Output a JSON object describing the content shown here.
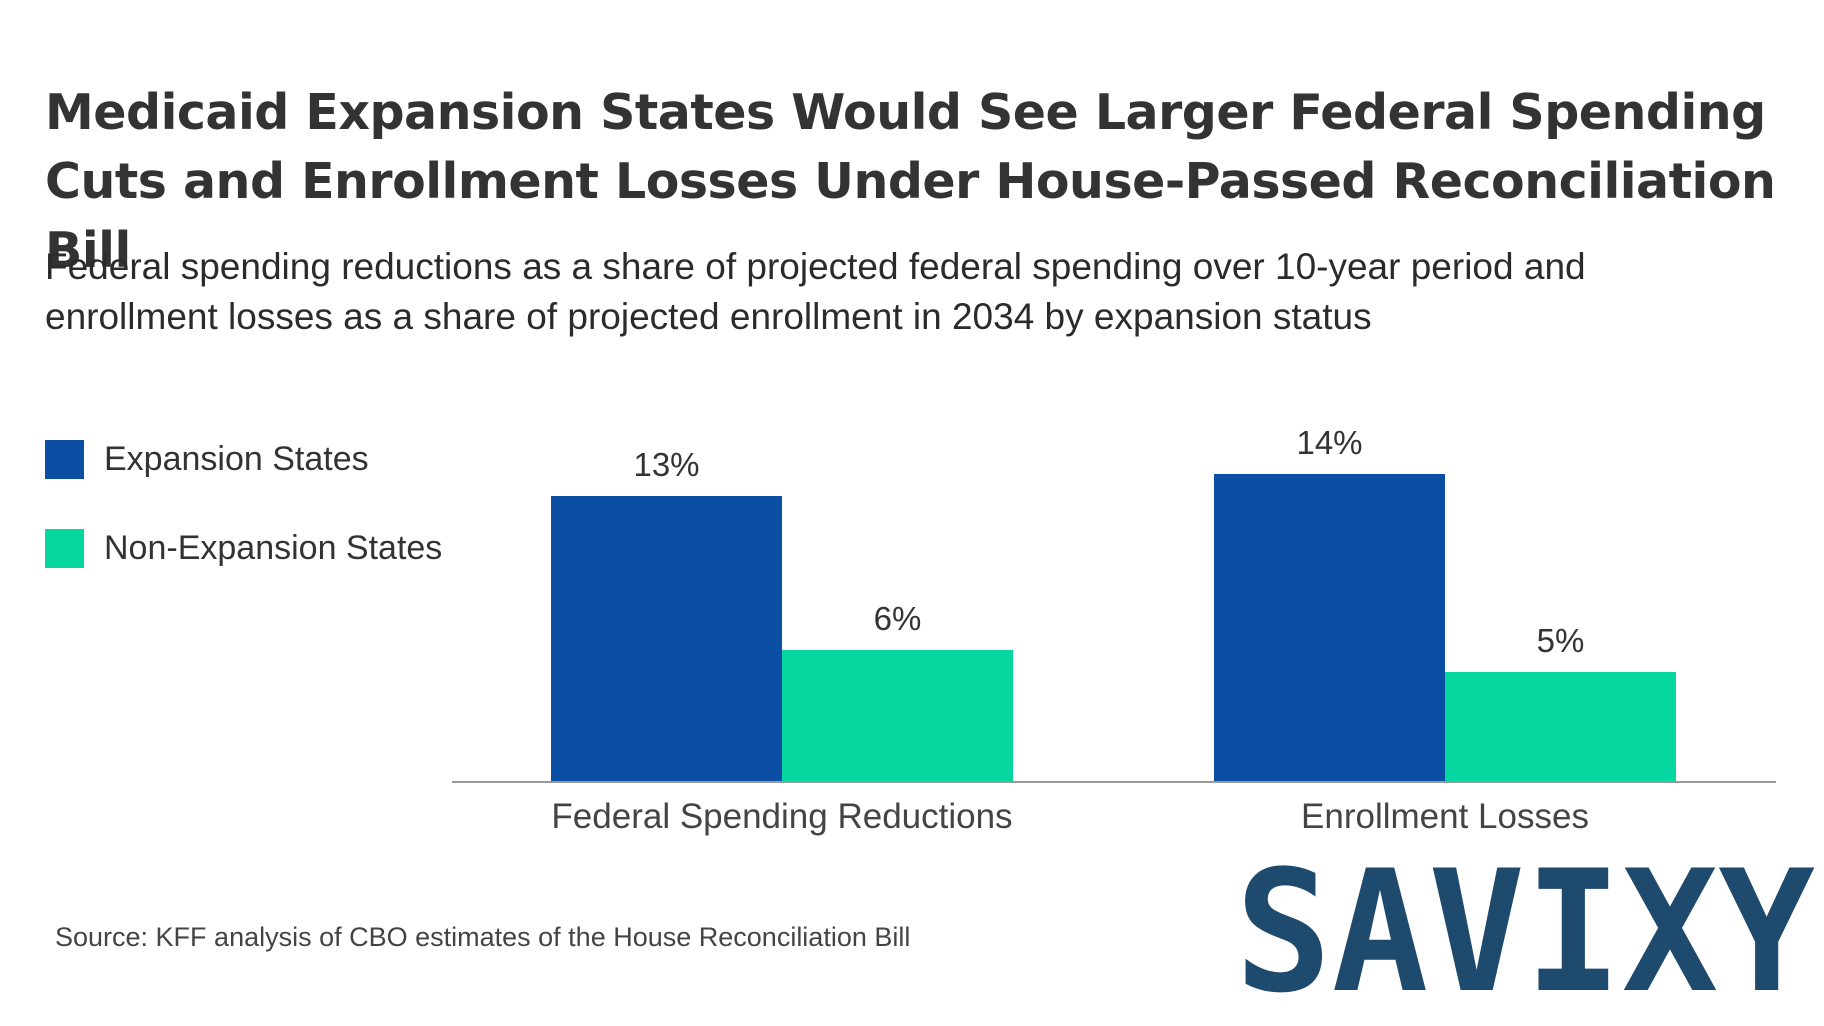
{
  "chart_data": {
    "type": "bar",
    "title": "Medicaid Expansion States Would See Larger Federal Spending Cuts and Enrollment Losses Under House-Passed Reconciliation Bill",
    "subtitle": "Federal spending reductions as a share of projected federal spending over 10-year period and enrollment losses as a share of projected enrollment in 2034 by expansion status",
    "categories": [
      "Federal Spending Reductions",
      "Enrollment Losses"
    ],
    "series": [
      {
        "name": "Expansion States",
        "values": [
          13,
          14
        ],
        "labels": [
          "13%",
          "14%"
        ],
        "color": "#0a4fa3"
      },
      {
        "name": "Non-Expansion States",
        "values": [
          6,
          5
        ],
        "labels": [
          "6%",
          "5%"
        ],
        "color": "#06d6a0"
      }
    ],
    "xlabel": "",
    "ylabel": "",
    "ylim": [
      0,
      14
    ],
    "grid": false,
    "legend_position": "left"
  },
  "source": "Source: KFF analysis of CBO estimates of the House Reconciliation Bill",
  "watermark": "SAVIXY",
  "colors": {
    "axis": "#999999",
    "watermark_fill": "#1e4a6d",
    "watermark_stroke": "#ffffff"
  }
}
